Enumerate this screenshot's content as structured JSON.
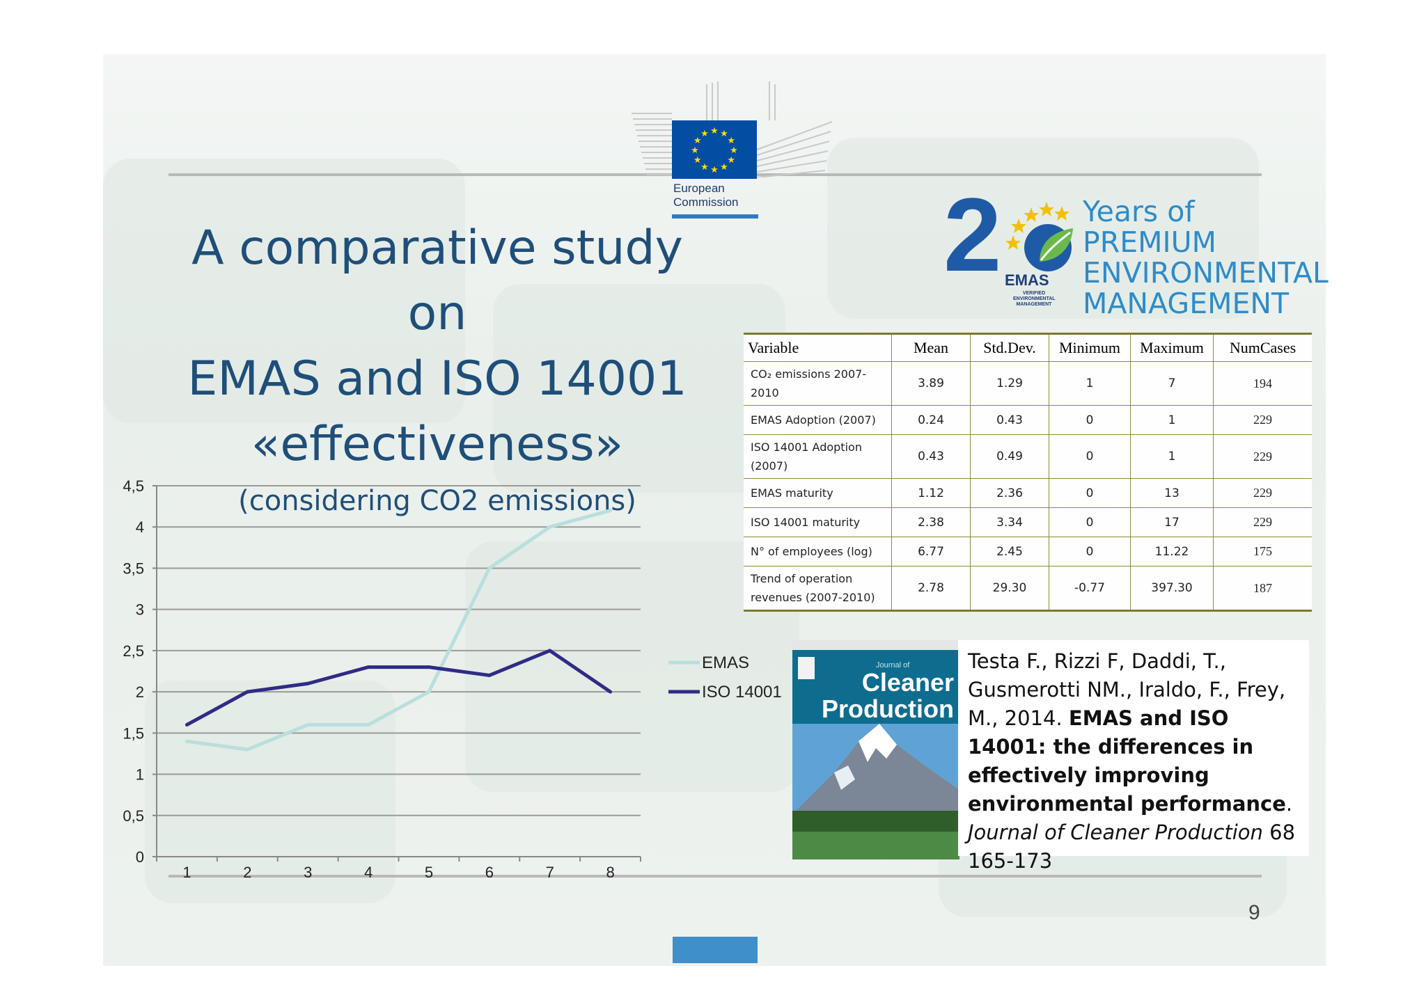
{
  "logos": {
    "ec": {
      "line1": "European",
      "line2": "Commission",
      "flag_color": "#034ea2",
      "star_color": "#ffdd00"
    },
    "emas": {
      "digit": "2",
      "badge": "EMAS",
      "badge_sub": [
        "VERIFIED",
        "ENVIRONMENTAL",
        "MANAGEMENT"
      ],
      "lines": [
        "Years of",
        "PREMIUM",
        "ENVIRONMENTAL",
        "MANAGEMENT"
      ]
    }
  },
  "title": {
    "line1": "A comparative study on",
    "line2": "EMAS and ISO 14001",
    "line3": "«effectiveness»",
    "subtitle": "(considering CO2 emissions)"
  },
  "chart_data": {
    "type": "line",
    "title": "",
    "xlabel": "",
    "ylabel": "",
    "x": [
      1,
      2,
      3,
      4,
      5,
      6,
      7,
      8
    ],
    "ylim": [
      0,
      4.5
    ],
    "yticks": [
      "0",
      "0,5",
      "1",
      "1,5",
      "2",
      "2,5",
      "3",
      "3,5",
      "4",
      "4,5"
    ],
    "grid": true,
    "legend": "right",
    "series": [
      {
        "name": "EMAS",
        "color": "#b9dede",
        "values": [
          1.4,
          1.3,
          1.6,
          1.6,
          2.0,
          3.5,
          4.0,
          4.2
        ]
      },
      {
        "name": "ISO 14001",
        "color": "#2e2c86",
        "values": [
          1.6,
          2.0,
          2.1,
          2.3,
          2.3,
          2.2,
          2.5,
          2.0
        ]
      }
    ]
  },
  "table": {
    "headers": [
      "Variable",
      "Mean",
      "Std.Dev.",
      "Minimum",
      "Maximum",
      "NumCases"
    ],
    "rows": [
      {
        "var": "CO₂ emissions 2007-2010",
        "mean": "3.89",
        "sd": "1.29",
        "min": "1",
        "max": "7",
        "n": "194"
      },
      {
        "var": "EMAS Adoption (2007)",
        "mean": "0.24",
        "sd": "0.43",
        "min": "0",
        "max": "1",
        "n": "229"
      },
      {
        "var": "ISO 14001 Adoption (2007)",
        "mean": "0.43",
        "sd": "0.49",
        "min": "0",
        "max": "1",
        "n": "229"
      },
      {
        "var": "EMAS maturity",
        "mean": "1.12",
        "sd": "2.36",
        "min": "0",
        "max": "13",
        "n": "229"
      },
      {
        "var": "ISO 14001 maturity",
        "mean": "2.38",
        "sd": "3.34",
        "min": "0",
        "max": "17",
        "n": "229"
      },
      {
        "var": "N° of employees (log)",
        "mean": "6.77",
        "sd": "2.45",
        "min": "0",
        "max": "11.22",
        "n": "175"
      },
      {
        "var": "Trend of operation revenues (2007-2010)",
        "mean": "2.78",
        "sd": "29.30",
        "min": "-0.77",
        "max": "397.30",
        "n": "187"
      }
    ]
  },
  "cover": {
    "journal_label": "Journal of",
    "title1": "Cleaner",
    "title2": "Production"
  },
  "reference": {
    "authors": "Testa F., Rizzi F, Daddi, T., Gusmerotti NM., Iraldo, F., Frey, M., 2014. ",
    "title": "EMAS and ISO 14001: the differences in effectively improving environmental performance",
    "sep": ". ",
    "journal": "Journal of  Cleaner Production",
    "pages": " 68 165-173"
  },
  "page_number": "9"
}
